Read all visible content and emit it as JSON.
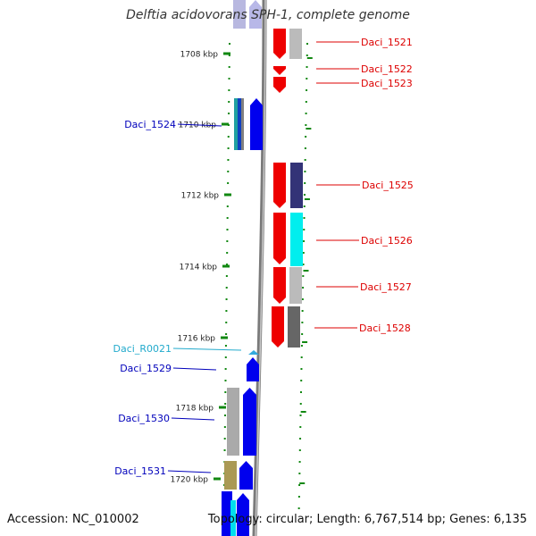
{
  "title": "Delftia acidovorans SPH-1, complete genome",
  "footer": {
    "accession": "Accession: NC_010002",
    "summary": "Topology: circular; Length: 6,767,514 bp; Genes: 6,135"
  },
  "colors": {
    "forward": "#0000ee",
    "reverse": "#ee0000",
    "rna": "#22bbdd",
    "tick": "#118811",
    "backbone": "#888888"
  },
  "ticks": [
    "1708 kbp",
    "1710 kbp",
    "1712 kbp",
    "1714 kbp",
    "1716 kbp",
    "1718 kbp",
    "1720 kbp"
  ],
  "genes_right": [
    {
      "label": "Daci_1521",
      "color": "#dd0000"
    },
    {
      "label": "Daci_1522",
      "color": "#dd0000"
    },
    {
      "label": "Daci_1523",
      "color": "#dd0000"
    },
    {
      "label": "Daci_1525",
      "color": "#dd0000"
    },
    {
      "label": "Daci_1526",
      "color": "#dd0000"
    },
    {
      "label": "Daci_1527",
      "color": "#dd0000"
    },
    {
      "label": "Daci_1528",
      "color": "#dd0000"
    }
  ],
  "genes_left": [
    {
      "label": "Daci_1524",
      "color": "#0000bb"
    },
    {
      "label": "Daci_R0021",
      "color": "#22aacc"
    },
    {
      "label": "Daci_1529",
      "color": "#0000bb"
    },
    {
      "label": "Daci_1530",
      "color": "#0000bb"
    },
    {
      "label": "Daci_1531",
      "color": "#0000bb"
    }
  ]
}
